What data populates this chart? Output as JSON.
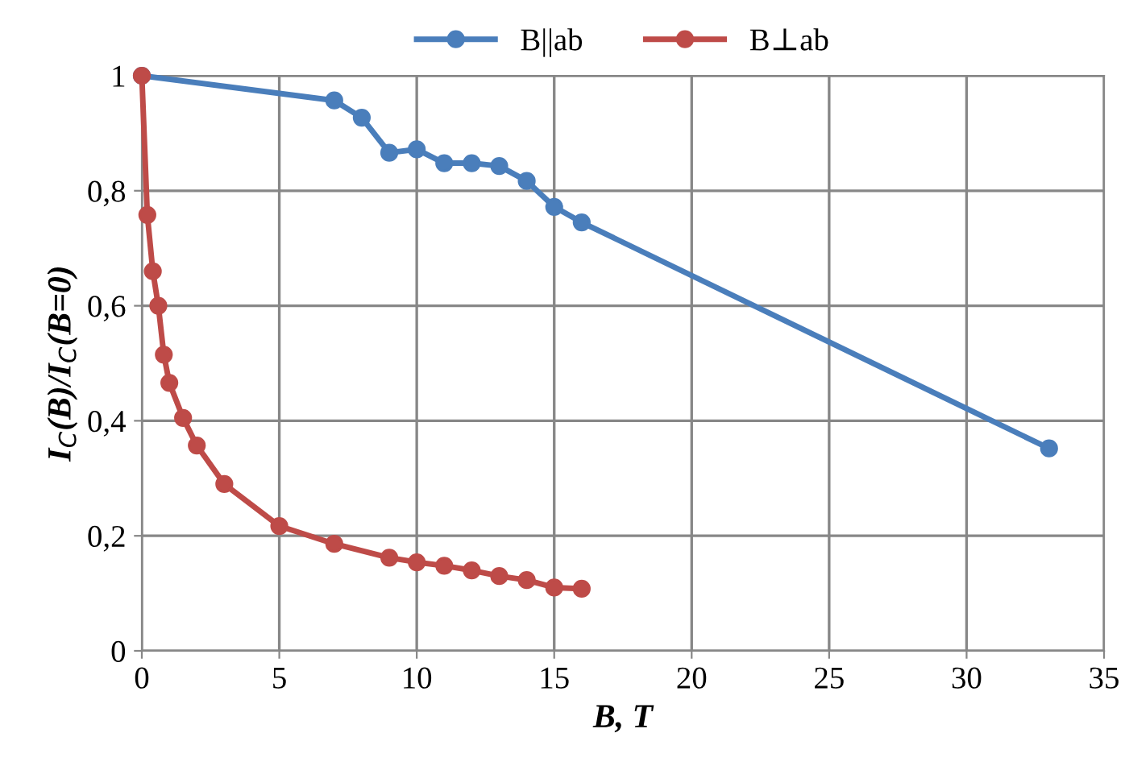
{
  "chart_data": {
    "type": "line",
    "xlabel": "B, T",
    "ylabel": "I$_{C}$(B)/I$_{C}$(B=0)",
    "series": [
      {
        "name": "B||ab",
        "color": "#4a7ebb",
        "x": [
          0,
          7,
          8,
          9,
          10,
          11,
          12,
          13,
          14,
          15,
          16,
          33
        ],
        "values": [
          1,
          0.957,
          0.927,
          0.866,
          0.872,
          0.848,
          0.848,
          0.843,
          0.817,
          0.772,
          0.745,
          0.352
        ]
      },
      {
        "name": "B⊥ab",
        "color": "#be4b48",
        "x": [
          0,
          0.2,
          0.4,
          0.6,
          0.8,
          1,
          1.5,
          2,
          3,
          5,
          7,
          9,
          10,
          11,
          12,
          13,
          14,
          15,
          16
        ],
        "values": [
          1,
          0.758,
          0.66,
          0.6,
          0.515,
          0.466,
          0.405,
          0.357,
          0.29,
          0.217,
          0.186,
          0.162,
          0.154,
          0.148,
          0.14,
          0.13,
          0.123,
          0.11,
          0.108
        ]
      }
    ],
    "xlim": [
      0,
      35
    ],
    "xticks": [
      0,
      5,
      10,
      15,
      20,
      25,
      30,
      35
    ],
    "ylim": [
      0,
      1
    ],
    "yticks": [
      0,
      {
        "value": 0.2,
        "label": "0,2"
      },
      {
        "value": 0.4,
        "label": "0,4"
      },
      {
        "value": 0.6,
        "label": "0,6"
      },
      {
        "value": 0.8,
        "label": "0,8"
      },
      1
    ],
    "grid": true,
    "legend": "top",
    "marker": "circle",
    "line_style": "solid"
  }
}
